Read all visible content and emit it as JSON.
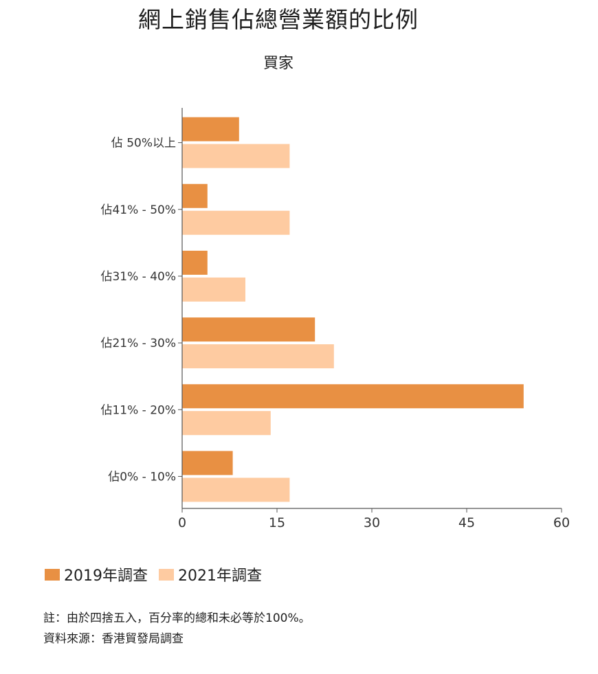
{
  "chart_data": {
    "type": "bar",
    "orientation": "horizontal",
    "title": "網上銷售佔總營業額的比例",
    "subtitle": "買家",
    "categories": [
      "佔 50%以上",
      "佔41% - 50%",
      "佔31% - 40%",
      "佔21% - 30%",
      "佔11% - 20%",
      "佔0% - 10%"
    ],
    "series": [
      {
        "name": "2019年調查",
        "color": "#e89043",
        "values": [
          9,
          4,
          4,
          21,
          54,
          8
        ]
      },
      {
        "name": "2021年調查",
        "color": "#fecba1",
        "values": [
          17,
          17,
          10,
          24,
          14,
          17
        ]
      }
    ],
    "xlim": [
      0,
      60
    ],
    "xticks": [
      "0",
      "15",
      "30",
      "45",
      "60"
    ],
    "grid": false,
    "legend_position": "bottom-left"
  },
  "notes": {
    "line1": "註：由於四捨五入，百分率的總和未必等於100%。",
    "line2": "資料來源：香港貿發局調查"
  }
}
